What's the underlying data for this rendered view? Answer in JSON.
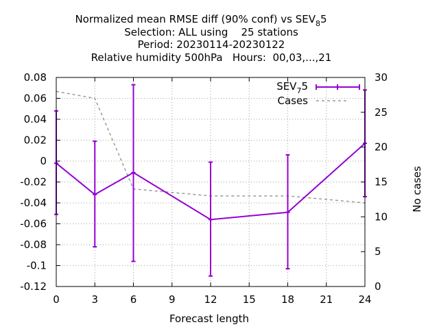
{
  "chart_data": {
    "type": "line",
    "title_lines": [
      "Normalized mean RMSE diff (90% conf) vs SEV",
      "Selection: ALL using    25 stations",
      "Period: 20230114-20230122",
      "Relative humidity 500hPa   Hours:  00,03,...,21"
    ],
    "title_sub": "8",
    "title_tail": "5",
    "xlabel": "Forecast length",
    "y2label": "No cases",
    "xlim": [
      0,
      24
    ],
    "ylim": [
      -0.12,
      0.08
    ],
    "y2lim": [
      0,
      30
    ],
    "xticks": [
      "0",
      "3",
      "6",
      "9",
      "12",
      "15",
      "18",
      "21",
      "24"
    ],
    "yticks": [
      "0.08",
      "0.06",
      "0.04",
      "0.02",
      "0",
      "-0.02",
      "-0.04",
      "-0.06",
      "-0.08",
      "-0.1",
      "-0.12"
    ],
    "y2ticks": [
      "30",
      "25",
      "20",
      "15",
      "10",
      "5",
      "0"
    ],
    "grid": true,
    "legend_position": "top-right",
    "series": [
      {
        "name": "SEV",
        "name_sub": "7",
        "name_tail": "5",
        "color": "#9400d3",
        "style": "line-errorbars",
        "x": [
          0,
          3,
          6,
          12,
          18,
          24
        ],
        "y": [
          -0.002,
          -0.032,
          -0.011,
          -0.056,
          -0.049,
          0.017
        ],
        "err_low": [
          -0.051,
          -0.082,
          -0.096,
          -0.11,
          -0.103,
          -0.034
        ],
        "err_high": [
          0.048,
          0.019,
          0.073,
          -0.001,
          0.006,
          0.068
        ]
      },
      {
        "name": "Cases",
        "color": "#999999",
        "style": "dashed",
        "axis": "y2",
        "x": [
          0,
          3,
          6,
          12,
          18,
          24
        ],
        "y": [
          28,
          27,
          14,
          13,
          13,
          12
        ]
      }
    ]
  }
}
